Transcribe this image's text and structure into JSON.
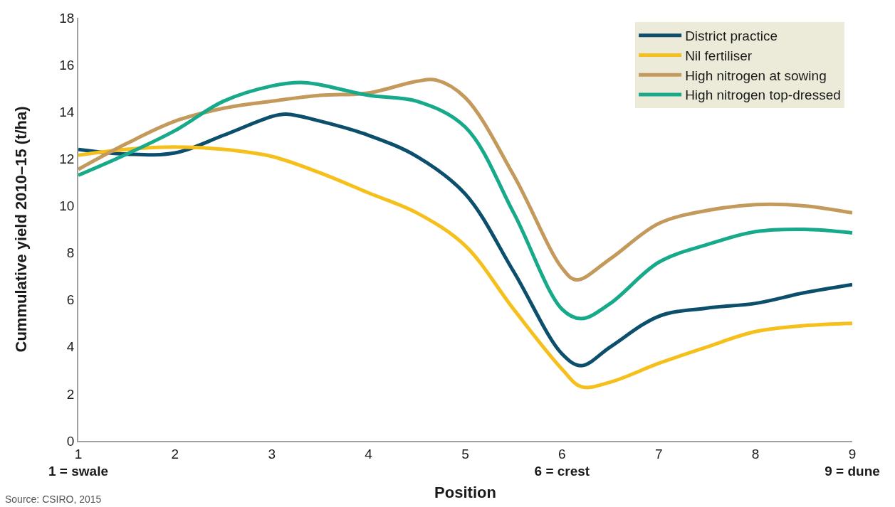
{
  "chart_data": {
    "type": "line",
    "xlabel": "Position",
    "ylabel": "Cummulative yield 2010–15 (t/ha)",
    "xlim": [
      1,
      9
    ],
    "xticks": [
      {
        "value": 1,
        "label": "1\n1 = swale"
      },
      2,
      3,
      4,
      5,
      {
        "value": 6,
        "label": "6\n6 = crest"
      },
      7,
      8,
      {
        "value": 9,
        "label": "9\n9 = dune"
      }
    ],
    "ylim": [
      0,
      18
    ],
    "yticks": [
      0,
      2,
      4,
      6,
      8,
      10,
      12,
      14,
      16,
      18
    ],
    "legend": "top right",
    "marker": "none",
    "line_style": "solid",
    "series": [
      {
        "name": "District practice",
        "color": "#0b4f6c",
        "x": [
          1,
          1.5,
          2,
          2.5,
          3,
          3.15,
          3.5,
          4,
          4.5,
          5,
          5.5,
          6,
          6.2,
          6.5,
          7,
          7.5,
          8,
          8.5,
          9
        ],
        "values": [
          12.4,
          12.2,
          12.25,
          13.0,
          13.8,
          13.9,
          13.6,
          13.0,
          12.1,
          10.5,
          7.2,
          3.7,
          3.2,
          4.0,
          5.3,
          5.65,
          5.85,
          6.3,
          6.65
        ]
      },
      {
        "name": "Nil fertiliser",
        "color": "#f6c01c",
        "x": [
          1,
          1.5,
          2,
          2.5,
          3,
          3.5,
          4,
          4.5,
          5,
          5.5,
          6,
          6.2,
          6.5,
          7,
          7.5,
          8,
          8.5,
          9
        ],
        "values": [
          12.15,
          12.4,
          12.5,
          12.4,
          12.1,
          11.4,
          10.55,
          9.7,
          8.3,
          5.6,
          3.05,
          2.3,
          2.5,
          3.3,
          4.0,
          4.65,
          4.9,
          5.0
        ]
      },
      {
        "name": "High nitrogen at sowing",
        "color": "#c49a5c",
        "x": [
          1,
          1.5,
          2,
          2.5,
          3,
          3.5,
          4,
          4.5,
          4.7,
          5,
          5.5,
          6,
          6.15,
          6.5,
          7,
          7.5,
          8,
          8.5,
          9
        ],
        "values": [
          11.55,
          12.65,
          13.6,
          14.15,
          14.45,
          14.7,
          14.8,
          15.3,
          15.35,
          14.6,
          11.3,
          7.35,
          6.85,
          7.75,
          9.25,
          9.8,
          10.05,
          10.0,
          9.7
        ]
      },
      {
        "name": "High nitrogen top-dressed",
        "color": "#16a98a",
        "x": [
          1,
          1.5,
          2,
          2.5,
          3,
          3.3,
          3.5,
          4,
          4.5,
          5,
          5.5,
          6,
          6.2,
          6.5,
          7,
          7.5,
          8,
          8.5,
          9
        ],
        "values": [
          11.3,
          12.2,
          13.2,
          14.45,
          15.1,
          15.25,
          15.15,
          14.7,
          14.45,
          13.35,
          9.7,
          5.6,
          5.2,
          5.85,
          7.6,
          8.35,
          8.9,
          9.0,
          8.85
        ]
      }
    ],
    "annotations": [
      "Source: CSIRO, 2015"
    ]
  }
}
